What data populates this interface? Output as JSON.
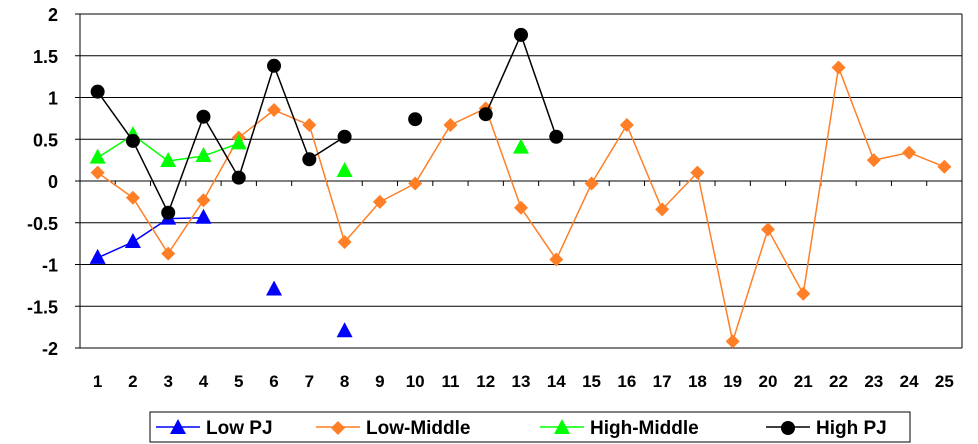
{
  "chart_data": {
    "type": "line",
    "title": "",
    "xlabel": "",
    "ylabel": "",
    "categories": [
      "1",
      "2",
      "3",
      "4",
      "5",
      "6",
      "7",
      "8",
      "9",
      "10",
      "11",
      "12",
      "13",
      "14",
      "15",
      "16",
      "17",
      "18",
      "19",
      "20",
      "21",
      "22",
      "23",
      "24",
      "25"
    ],
    "ylim": [
      -2,
      2
    ],
    "yticks": [
      2,
      1.5,
      1,
      0.5,
      0,
      -0.5,
      -1,
      -1.5,
      -2
    ],
    "ytick_labels": [
      "2",
      "1.5",
      "1",
      "0.5",
      "0",
      "-0.5",
      "-1",
      "-1.5",
      "-2"
    ],
    "grid": "horizontal",
    "legend_position": "bottom",
    "series": [
      {
        "name": "Low PJ",
        "color": "#0000ff",
        "marker": "triangle",
        "values": [
          -0.92,
          -0.73,
          -0.45,
          -0.44,
          null,
          -1.3,
          null,
          -1.8,
          null,
          null,
          null,
          null,
          null,
          null,
          null,
          null,
          null,
          null,
          null,
          null,
          null,
          null,
          null,
          null,
          null
        ]
      },
      {
        "name": "Low-Middle",
        "color": "#ff7f27",
        "marker": "diamond",
        "values": [
          0.1,
          -0.2,
          -0.87,
          -0.23,
          0.52,
          0.85,
          0.67,
          -0.73,
          -0.25,
          -0.03,
          0.67,
          0.87,
          -0.32,
          -0.94,
          -0.03,
          0.67,
          -0.34,
          0.1,
          -1.92,
          -0.58,
          -1.35,
          1.36,
          0.25,
          0.34,
          0.17
        ]
      },
      {
        "name": "High-Middle",
        "color": "#00ff00",
        "marker": "triangle",
        "values": [
          0.28,
          0.55,
          0.24,
          0.3,
          0.45,
          null,
          null,
          0.12,
          null,
          null,
          null,
          null,
          0.4,
          null,
          null,
          null,
          null,
          null,
          null,
          null,
          null,
          null,
          null,
          null,
          null
        ]
      },
      {
        "name": "High PJ",
        "color": "#000000",
        "marker": "circle",
        "values": [
          1.07,
          0.48,
          -0.38,
          0.77,
          0.04,
          1.38,
          0.26,
          0.53,
          null,
          0.74,
          null,
          0.8,
          1.75,
          0.53,
          null,
          null,
          null,
          null,
          null,
          null,
          null,
          null,
          null,
          null,
          null
        ]
      }
    ]
  }
}
